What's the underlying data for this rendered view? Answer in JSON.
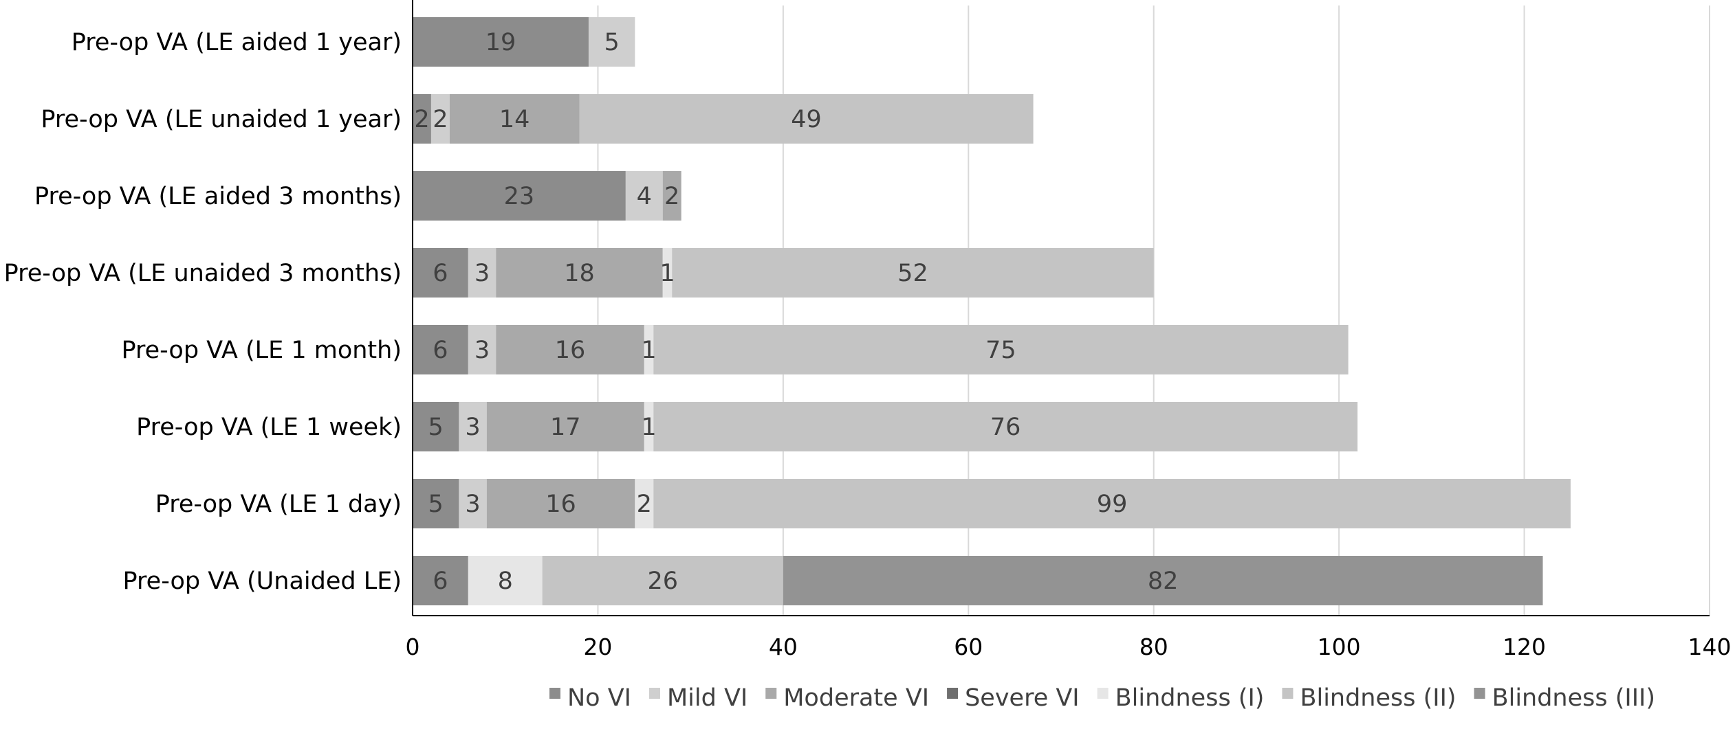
{
  "chart_data": {
    "type": "bar",
    "orientation": "horizontal",
    "stacked": true,
    "categories": [
      "Pre-op VA (LE aided 1 year)",
      "Pre-op VA (LE unaided 1 year)",
      "Pre-op VA (LE aided 3 months)",
      "Pre-op VA (LE unaided 3 months)",
      "Pre-op VA (LE 1 month)",
      "Pre-op VA (LE 1 week)",
      "Pre-op VA (LE 1 day)",
      "Pre-op VA (Unaided LE)"
    ],
    "series": [
      {
        "name": "No VI",
        "color": "#8c8c8c",
        "values": [
          19,
          2,
          23,
          6,
          6,
          5,
          5,
          6
        ]
      },
      {
        "name": "Mild VI",
        "color": "#cfcfcf",
        "values": [
          5,
          2,
          4,
          3,
          3,
          3,
          3,
          0
        ]
      },
      {
        "name": "Moderate VI",
        "color": "#a9a9a9",
        "values": [
          0,
          14,
          2,
          18,
          16,
          17,
          16,
          0
        ]
      },
      {
        "name": "Severe VI",
        "color": "#6e6e6e",
        "values": [
          0,
          0,
          0,
          0,
          0,
          0,
          0,
          0
        ]
      },
      {
        "name": "Blindness (I)",
        "color": "#e6e6e6",
        "values": [
          0,
          0,
          0,
          1,
          1,
          1,
          2,
          8
        ]
      },
      {
        "name": "Blindness (II)",
        "color": "#c4c4c4",
        "values": [
          0,
          49,
          0,
          52,
          75,
          76,
          99,
          26
        ]
      },
      {
        "name": "Blindness (III)",
        "color": "#939393",
        "values": [
          0,
          0,
          0,
          0,
          0,
          0,
          0,
          82
        ]
      }
    ],
    "x_ticks": [
      "0",
      "20",
      "40",
      "60",
      "80",
      "100",
      "120",
      "140"
    ],
    "xlim": [
      0,
      140
    ],
    "grid": "vertical",
    "legend": "bottom",
    "title": "",
    "xlabel": "",
    "ylabel": ""
  }
}
